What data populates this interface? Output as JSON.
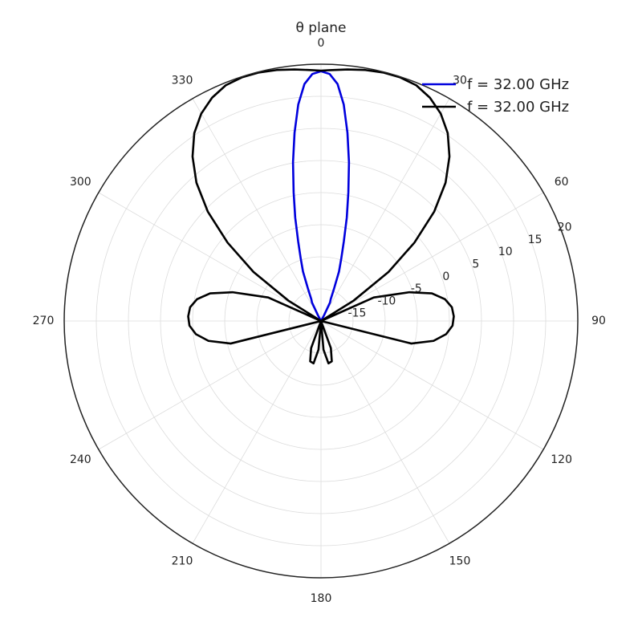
{
  "chart_data": {
    "type": "line",
    "projection": "polar",
    "title": "θ plane",
    "theta_direction": "clockwise",
    "theta_zero": "top",
    "theta_ticks": [
      0,
      30,
      60,
      90,
      120,
      150,
      180,
      210,
      240,
      270,
      300,
      330
    ],
    "theta_tick_labels": [
      "0",
      "30",
      "60",
      "90",
      "120",
      "150",
      "180",
      "210",
      "240",
      "270",
      "300",
      "330"
    ],
    "rlim": [
      -20,
      20
    ],
    "r_ticks": [
      -15,
      -10,
      -5,
      0,
      5,
      10,
      15,
      20
    ],
    "r_tick_labels": [
      "-15",
      "-10",
      "-5",
      "0",
      "5",
      "10",
      "15",
      "20"
    ],
    "r_label_angle": 67.5,
    "grid": true,
    "legend": "top-right",
    "series": [
      {
        "name": "f = 32.00 GHz",
        "color": "#0000dd",
        "points": [
          [
            -30,
            -20
          ],
          [
            -28,
            -19
          ],
          [
            -26,
            -16.8
          ],
          [
            -24,
            -16.3
          ],
          [
            -22,
            -14.6
          ],
          [
            -20,
            -11.8
          ],
          [
            -18,
            -9.8
          ],
          [
            -16,
            -7.1
          ],
          [
            -14,
            -3.4
          ],
          [
            -12,
            0.5
          ],
          [
            -10,
            5.1
          ],
          [
            -8,
            9.6
          ],
          [
            -6,
            13.9
          ],
          [
            -4,
            17.0
          ],
          [
            -2,
            18.5
          ],
          [
            0,
            18.9
          ],
          [
            2,
            18.5
          ],
          [
            4,
            17.0
          ],
          [
            6,
            13.9
          ],
          [
            8,
            9.6
          ],
          [
            10,
            5.1
          ],
          [
            12,
            0.5
          ],
          [
            14,
            -3.4
          ],
          [
            16,
            -7.1
          ],
          [
            18,
            -9.8
          ],
          [
            20,
            -11.8
          ],
          [
            22,
            -14.6
          ],
          [
            24,
            -16.3
          ],
          [
            26,
            -16.8
          ],
          [
            28,
            -19
          ],
          [
            30,
            -20
          ]
        ]
      },
      {
        "name": "f = 32.00 GHz",
        "color": "#000000",
        "points": [
          [
            -155,
            -20
          ],
          [
            -160,
            -15.5
          ],
          [
            -165,
            -13.5
          ],
          [
            -170,
            -13.3
          ],
          [
            -175,
            -15.5
          ],
          [
            180,
            -20
          ],
          [
            175,
            -15.5
          ],
          [
            170,
            -13.3
          ],
          [
            165,
            -13.5
          ],
          [
            160,
            -15.5
          ],
          [
            155,
            -20
          ],
          [
            108,
            -20
          ],
          [
            104,
            -5.5
          ],
          [
            100,
            -2.2
          ],
          [
            96,
            -0.4
          ],
          [
            92,
            0.5
          ],
          [
            88,
            0.7
          ],
          [
            84,
            0.5
          ],
          [
            80,
            -0.4
          ],
          [
            76,
            -2.2
          ],
          [
            72,
            -5.5
          ],
          [
            66,
            -11
          ],
          [
            62,
            -20
          ],
          [
            58,
            -14
          ],
          [
            54,
            -7
          ],
          [
            50,
            -1
          ],
          [
            46,
            4.5
          ],
          [
            42,
            9.0
          ],
          [
            38,
            12.5
          ],
          [
            34,
            15.3
          ],
          [
            30,
            17.3
          ],
          [
            26,
            18.7
          ],
          [
            22,
            19.6
          ],
          [
            18,
            19.9
          ],
          [
            14,
            19.9
          ],
          [
            10,
            19.7
          ],
          [
            6,
            19.4
          ],
          [
            2,
            19.1
          ],
          [
            0,
            19.0
          ],
          [
            -2,
            19.1
          ],
          [
            -6,
            19.4
          ],
          [
            -10,
            19.7
          ],
          [
            -14,
            19.9
          ],
          [
            -18,
            19.9
          ],
          [
            -22,
            19.6
          ],
          [
            -26,
            18.7
          ],
          [
            -30,
            17.3
          ],
          [
            -34,
            15.3
          ],
          [
            -38,
            12.5
          ],
          [
            -42,
            9.0
          ],
          [
            -46,
            4.5
          ],
          [
            -50,
            -1
          ],
          [
            -54,
            -7
          ],
          [
            -58,
            -14
          ],
          [
            -62,
            -20
          ],
          [
            -66,
            -11
          ],
          [
            -72,
            -5.5
          ],
          [
            -76,
            -2.2
          ],
          [
            -80,
            -0.4
          ],
          [
            -84,
            0.5
          ],
          [
            -88,
            0.7
          ],
          [
            -92,
            0.5
          ],
          [
            -96,
            -0.4
          ],
          [
            -100,
            -2.2
          ],
          [
            -104,
            -5.5
          ],
          [
            -108,
            -20
          ]
        ]
      }
    ]
  }
}
